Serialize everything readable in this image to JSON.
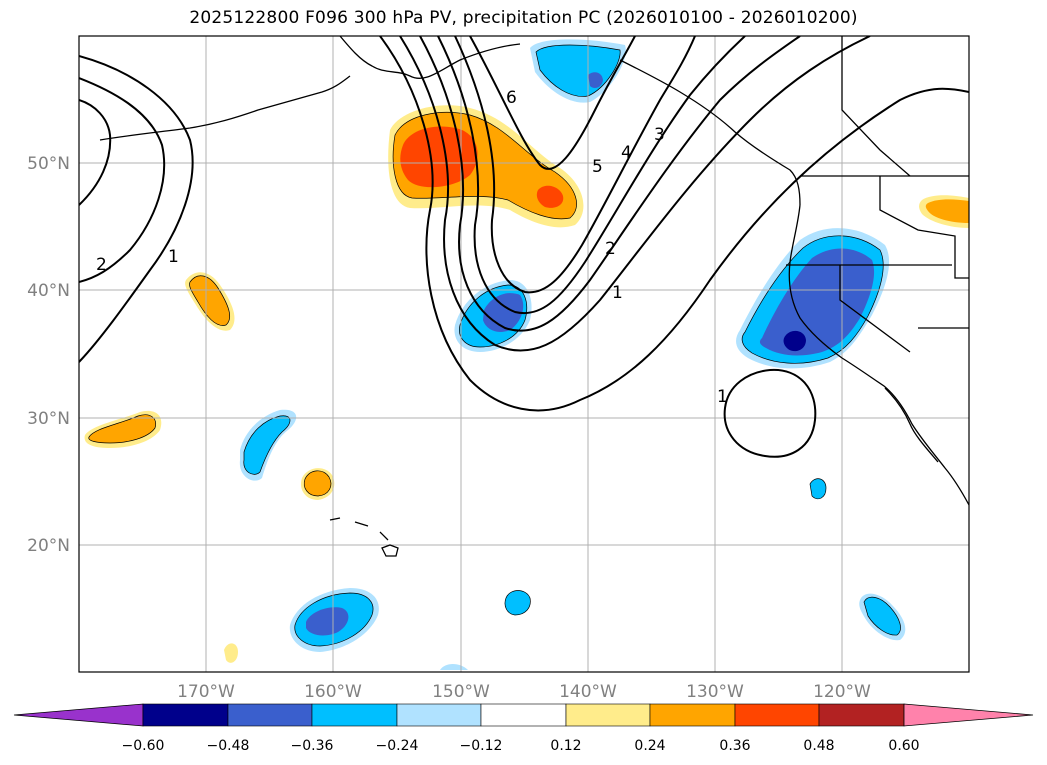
{
  "title": "2025122800 F096 300 hPa PV, precipitation PC (2026010100 - 2026010200)",
  "map": {
    "lat_ticks": [
      "50°N",
      "40°N",
      "30°N",
      "20°N"
    ],
    "lon_ticks": [
      "170°W",
      "160°W",
      "150°W",
      "140°W",
      "130°W",
      "120°W"
    ],
    "pv_contour_labels": [
      "1",
      "2",
      "1",
      "2",
      "3",
      "4",
      "5",
      "6",
      "1"
    ]
  },
  "colorbar": {
    "ticks": [
      "−0.60",
      "−0.48",
      "−0.36",
      "−0.24",
      "−0.12",
      "0.12",
      "0.24",
      "0.36",
      "0.48",
      "0.60"
    ],
    "colors": [
      "#9932cc",
      "#00008b",
      "#3a5fcd",
      "#00bfff",
      "#b0e2ff",
      "#ffffff",
      "#ffec8b",
      "#ffa500",
      "#ff4500",
      "#b22222",
      "#ff82ab"
    ]
  },
  "shading_colors": {
    "neg_light": "#b0e2ff",
    "neg_mid": "#00bfff",
    "neg_strong": "#3a5fcd",
    "neg_max": "#00008b",
    "pos_light": "#ffec8b",
    "pos_mid": "#ffa500",
    "pos_strong": "#ff4500"
  }
}
